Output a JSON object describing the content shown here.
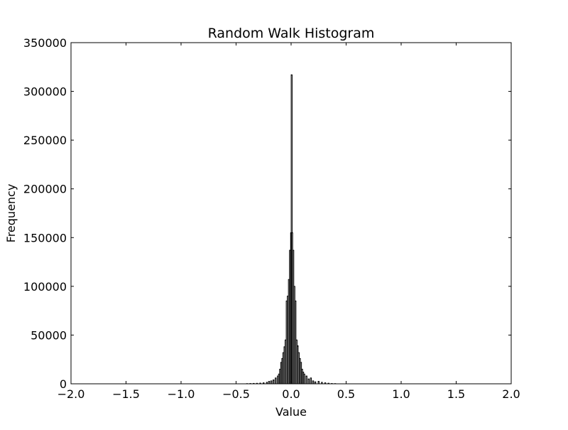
{
  "chart_data": {
    "type": "bar",
    "title": "Random Walk Histogram",
    "xlabel": "Value",
    "ylabel": "Frequency",
    "xlim": [
      -2.0,
      2.0
    ],
    "ylim": [
      0,
      350000
    ],
    "x_ticks": [
      -2.0,
      -1.5,
      -1.0,
      -0.5,
      0.0,
      0.5,
      1.0,
      1.5,
      2.0
    ],
    "x_tick_labels": [
      "−2.0",
      "−1.5",
      "−1.0",
      "−0.5",
      "0.0",
      "0.5",
      "1.0",
      "1.5",
      "2.0"
    ],
    "y_ticks": [
      0,
      50000,
      100000,
      150000,
      200000,
      250000,
      300000,
      350000
    ],
    "y_tick_labels": [
      "0",
      "50000",
      "100000",
      "150000",
      "200000",
      "250000",
      "300000",
      "350000"
    ],
    "grid": false,
    "legend": null,
    "bar_color": "#000000",
    "bar_width": 0.009,
    "bins": [
      {
        "x": -0.4,
        "y": 200
      },
      {
        "x": -0.37,
        "y": 300
      },
      {
        "x": -0.34,
        "y": 400
      },
      {
        "x": -0.31,
        "y": 500
      },
      {
        "x": -0.28,
        "y": 700
      },
      {
        "x": -0.25,
        "y": 1000
      },
      {
        "x": -0.22,
        "y": 1500
      },
      {
        "x": -0.2,
        "y": 2500
      },
      {
        "x": -0.18,
        "y": 3000
      },
      {
        "x": -0.16,
        "y": 4000
      },
      {
        "x": -0.14,
        "y": 6000
      },
      {
        "x": -0.12,
        "y": 8000
      },
      {
        "x": -0.11,
        "y": 10000
      },
      {
        "x": -0.1,
        "y": 15000
      },
      {
        "x": -0.09,
        "y": 22000
      },
      {
        "x": -0.08,
        "y": 26000
      },
      {
        "x": -0.07,
        "y": 32000
      },
      {
        "x": -0.06,
        "y": 38000
      },
      {
        "x": -0.05,
        "y": 45000
      },
      {
        "x": -0.04,
        "y": 85000
      },
      {
        "x": -0.03,
        "y": 90000
      },
      {
        "x": -0.02,
        "y": 107000
      },
      {
        "x": -0.01,
        "y": 137000
      },
      {
        "x": 0.0,
        "y": 155000
      },
      {
        "x": 0.005,
        "y": 317000
      },
      {
        "x": 0.01,
        "y": 155000
      },
      {
        "x": 0.02,
        "y": 137000
      },
      {
        "x": 0.03,
        "y": 100000
      },
      {
        "x": 0.04,
        "y": 85000
      },
      {
        "x": 0.05,
        "y": 45000
      },
      {
        "x": 0.06,
        "y": 39000
      },
      {
        "x": 0.07,
        "y": 32000
      },
      {
        "x": 0.08,
        "y": 26000
      },
      {
        "x": 0.09,
        "y": 22000
      },
      {
        "x": 0.1,
        "y": 15000
      },
      {
        "x": 0.11,
        "y": 12000
      },
      {
        "x": 0.12,
        "y": 10000
      },
      {
        "x": 0.14,
        "y": 8000
      },
      {
        "x": 0.16,
        "y": 5000
      },
      {
        "x": 0.18,
        "y": 6000
      },
      {
        "x": 0.2,
        "y": 3000
      },
      {
        "x": 0.22,
        "y": 2000
      },
      {
        "x": 0.25,
        "y": 2500
      },
      {
        "x": 0.28,
        "y": 1500
      },
      {
        "x": 0.31,
        "y": 1000
      },
      {
        "x": 0.34,
        "y": 600
      },
      {
        "x": 0.37,
        "y": 300
      },
      {
        "x": 0.4,
        "y": 200
      }
    ]
  }
}
